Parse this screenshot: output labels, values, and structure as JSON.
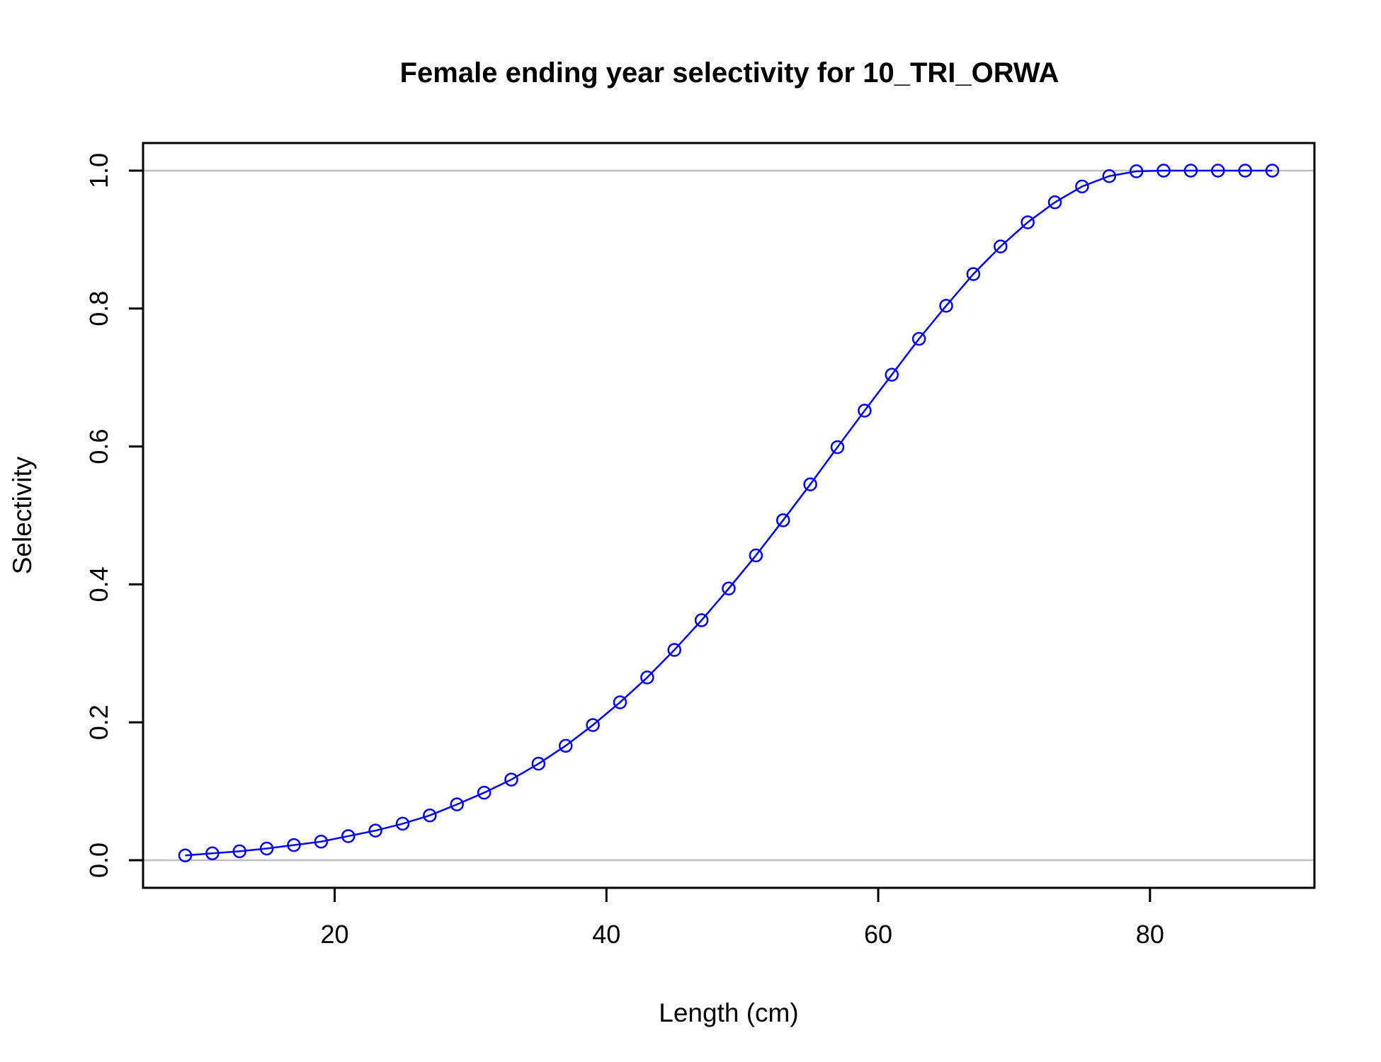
{
  "chart_data": {
    "type": "line",
    "title": "Female ending year selectivity for 10_TRI_ORWA",
    "xlabel": "Length (cm)",
    "ylabel": "Selectivity",
    "xlim": [
      5.9,
      92.1
    ],
    "ylim": [
      -0.04,
      1.04
    ],
    "xticks": [
      20,
      40,
      60,
      80
    ],
    "yticks": [
      0.0,
      0.2,
      0.4,
      0.6,
      0.8,
      1.0
    ],
    "xtick_labels": [
      "20",
      "40",
      "60",
      "80"
    ],
    "ytick_labels": [
      "0.0",
      "0.2",
      "0.4",
      "0.6",
      "0.8",
      "1.0"
    ],
    "reference_lines_y": [
      0,
      1
    ],
    "reference_line_color": "#bebebe",
    "grid": false,
    "legend": "none",
    "series": [
      {
        "color": "#0000ff",
        "marker": "open-circle",
        "x": [
          9,
          11,
          13,
          15,
          17,
          19,
          21,
          23,
          25,
          27,
          29,
          31,
          33,
          35,
          37,
          39,
          41,
          43,
          45,
          47,
          49,
          51,
          53,
          55,
          57,
          59,
          61,
          63,
          65,
          67,
          69,
          71,
          73,
          75,
          77,
          79,
          81,
          83,
          85,
          87,
          89
        ],
        "y": [
          0.007,
          0.01,
          0.013,
          0.017,
          0.022,
          0.027,
          0.035,
          0.043,
          0.053,
          0.065,
          0.081,
          0.098,
          0.117,
          0.14,
          0.166,
          0.196,
          0.229,
          0.265,
          0.305,
          0.348,
          0.394,
          0.442,
          0.493,
          0.545,
          0.599,
          0.652,
          0.704,
          0.756,
          0.804,
          0.85,
          0.89,
          0.925,
          0.954,
          0.977,
          0.992,
          0.999,
          1.0,
          1.0,
          1.0,
          1.0,
          1.0
        ]
      }
    ]
  }
}
